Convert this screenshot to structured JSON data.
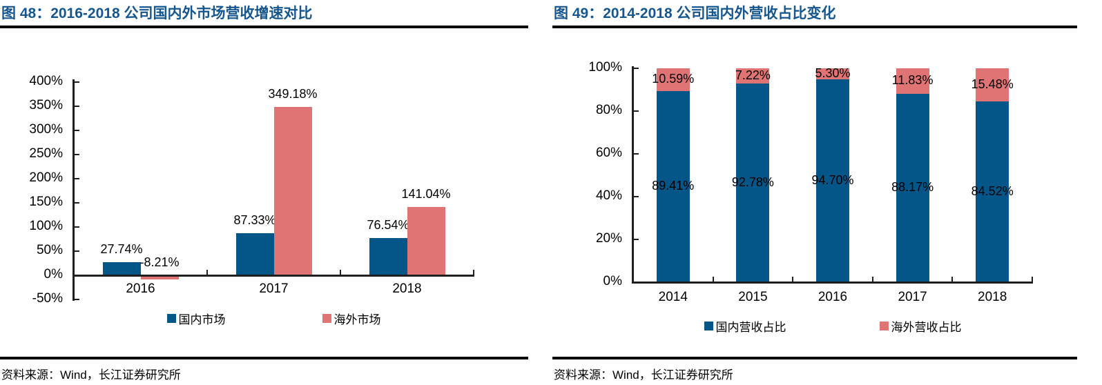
{
  "page": {
    "background": "#ffffff"
  },
  "colors": {
    "title_blue": "#15568f",
    "domestic_blue": "#045588",
    "overseas_red": "#e07474",
    "axis": "#1f1f1f",
    "rule": "#000000"
  },
  "panels": [
    {
      "title": "图 48：2016-2018 公司国内外市场营收增速对比",
      "source": "资料来源：Wind，长江证券研究所"
    },
    {
      "title": "图 49：2014-2018 公司国内外营收占比变化",
      "source": "资料来源：Wind，长江证券研究所"
    }
  ],
  "chart_data": [
    {
      "type": "bar",
      "title": "2016-2018 公司国内外市场营收增速对比",
      "categories": [
        "2016",
        "2017",
        "2018"
      ],
      "series": [
        {
          "name": "国内市场",
          "color": "#045588",
          "values": [
            27.74,
            87.33,
            76.54
          ],
          "labels": [
            "27.74%",
            "87.33%",
            "76.54%"
          ]
        },
        {
          "name": "海外市场",
          "color": "#e07474",
          "values": [
            -8.21,
            349.18,
            141.04
          ],
          "labels": [
            "-8.21%",
            "349.18%",
            "141.04%"
          ]
        }
      ],
      "ylim": [
        -50,
        400
      ],
      "yticks": [
        -50,
        0,
        50,
        100,
        150,
        200,
        250,
        300,
        350,
        400
      ],
      "ytick_suffix": "%",
      "grid": false,
      "legend_position": "bottom"
    },
    {
      "type": "stacked-bar",
      "title": "2014-2018 公司国内外营收占比变化",
      "categories": [
        "2014",
        "2015",
        "2016",
        "2017",
        "2018"
      ],
      "series": [
        {
          "name": "国内营收占比",
          "color": "#045588",
          "values": [
            89.41,
            92.78,
            94.7,
            88.17,
            84.52
          ],
          "labels": [
            "89.41%",
            "92.78%",
            "94.70%",
            "88.17%",
            "84.52%"
          ]
        },
        {
          "name": "海外营收占比",
          "color": "#e07474",
          "values": [
            10.59,
            7.22,
            5.3,
            11.83,
            15.48
          ],
          "labels": [
            "10.59%",
            "7.22%",
            "5.30%",
            "11.83%",
            "15.48%"
          ]
        }
      ],
      "ylim": [
        0,
        100
      ],
      "yticks": [
        0,
        20,
        40,
        60,
        80,
        100
      ],
      "ytick_suffix": "%",
      "grid": false,
      "legend_position": "bottom"
    }
  ]
}
